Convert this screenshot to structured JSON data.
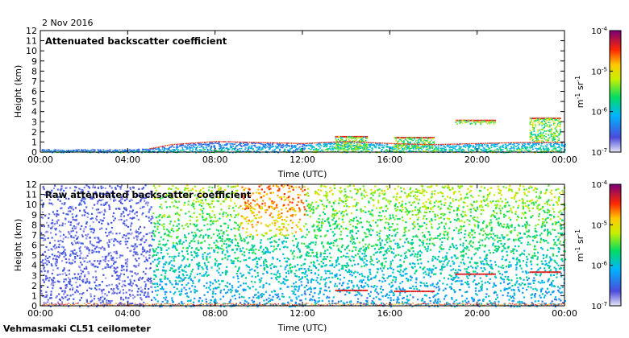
{
  "header": {
    "date": "2 Nov 2016"
  },
  "footer": {
    "site": "Vehmasmaki CL51 ceilometer"
  },
  "colors": {
    "background": "#ffffff",
    "axis": "#000000"
  },
  "chart_data": [
    {
      "type": "heatmap",
      "title": "Attenuated backscatter coefficient",
      "xlabel": "Time (UTC)",
      "ylabel": "Height (km)",
      "x_ticks": [
        "00:00",
        "04:00",
        "08:00",
        "12:00",
        "16:00",
        "20:00",
        "00:00"
      ],
      "y_ticks": [
        "0",
        "1",
        "2",
        "3",
        "4",
        "5",
        "6",
        "7",
        "8",
        "9",
        "10",
        "11",
        "12"
      ],
      "xlim_hours": [
        0,
        24
      ],
      "ylim_km": [
        0,
        12
      ],
      "colorbar": {
        "label_base": "m",
        "label_exp1": "-1",
        "label_mid": " sr",
        "label_exp2": "-1",
        "ticks": [
          {
            "base": "10",
            "exp": "-4"
          },
          {
            "base": "10",
            "exp": "-5"
          },
          {
            "base": "10",
            "exp": "-6"
          },
          {
            "base": "10",
            "exp": "-7"
          }
        ]
      },
      "boundary_layer_top_km": [
        [
          0,
          0.3
        ],
        [
          2,
          0.3
        ],
        [
          4,
          0.3
        ],
        [
          5,
          0.4
        ],
        [
          6,
          0.8
        ],
        [
          8,
          1.1
        ],
        [
          10,
          1.0
        ],
        [
          12,
          0.9
        ],
        [
          14,
          1.1
        ],
        [
          16,
          0.9
        ],
        [
          18,
          0.8
        ],
        [
          20,
          0.9
        ],
        [
          22,
          1.0
        ],
        [
          24,
          1.0
        ]
      ],
      "cloud_layers": [
        {
          "start_h": 13.5,
          "end_h": 15.0,
          "top_km": 1.6,
          "bottom_km": 0.3
        },
        {
          "start_h": 16.2,
          "end_h": 18.0,
          "top_km": 1.5,
          "bottom_km": 0.4
        },
        {
          "start_h": 19.0,
          "end_h": 20.8,
          "top_km": 3.2,
          "bottom_km": 2.8
        },
        {
          "start_h": 22.4,
          "end_h": 23.8,
          "top_km": 3.4,
          "bottom_km": 1.1
        }
      ]
    },
    {
      "type": "heatmap",
      "title": "Raw attenuated backscatter coefficient",
      "xlabel": "Time (UTC)",
      "ylabel": "Height (km)",
      "x_ticks": [
        "00:00",
        "04:00",
        "08:00",
        "12:00",
        "16:00",
        "20:00",
        "00:00"
      ],
      "y_ticks": [
        "0",
        "1",
        "2",
        "3",
        "4",
        "5",
        "6",
        "7",
        "8",
        "9",
        "10",
        "11",
        "12"
      ],
      "xlim_hours": [
        0,
        24
      ],
      "ylim_km": [
        0,
        12
      ],
      "noise_regime_change_h": 5.0,
      "max_noise_region": {
        "start_h": 9,
        "end_h": 12,
        "above_km": 7
      },
      "colorbar": {
        "label_base": "m",
        "label_exp1": "-1",
        "label_mid": " sr",
        "label_exp2": "-1",
        "ticks": [
          {
            "base": "10",
            "exp": "-4"
          },
          {
            "base": "10",
            "exp": "-5"
          },
          {
            "base": "10",
            "exp": "-6"
          },
          {
            "base": "10",
            "exp": "-7"
          }
        ]
      }
    }
  ]
}
